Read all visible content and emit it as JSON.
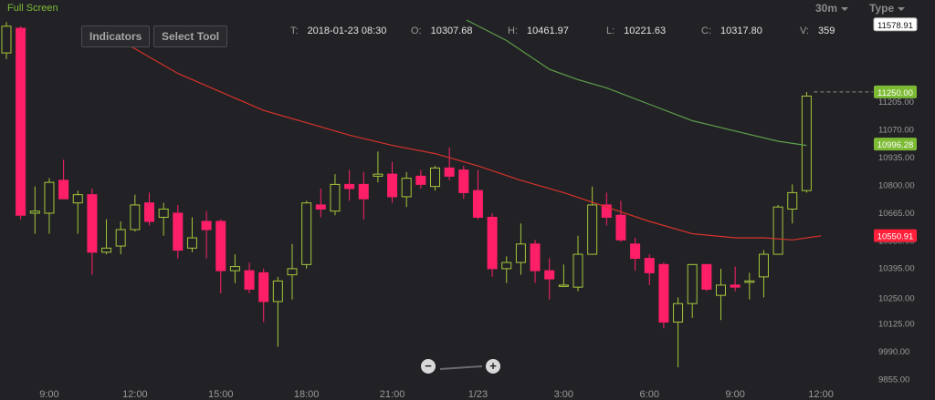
{
  "header": {
    "full_screen": "Full Screen",
    "interval": "30m",
    "type": "Type"
  },
  "toolbar": {
    "indicators": "Indicators",
    "select_tool": "Select Tool",
    "zoom_out": "−",
    "zoom_in": "+"
  },
  "ohlc": {
    "t_label": "T:",
    "t_value": "2018-01-23 08:30",
    "o_label": "O:",
    "o_value": "10307.68",
    "h_label": "H:",
    "h_value": "10461.97",
    "l_label": "L:",
    "l_value": "10221.63",
    "c_label": "C:",
    "c_value": "10317.80",
    "v_label": "V:",
    "v_value": "359"
  },
  "colors": {
    "background": "#222226",
    "up": "#a4c639",
    "down": "#ff1f68",
    "ma_red": "#d6322a",
    "ma_green": "#5e9e4a",
    "price_label_green": "#7dbb35",
    "price_label_red": "#ff1f3b"
  },
  "chart_data": {
    "type": "candlestick",
    "y_ticks": [
      9855,
      9990,
      10125,
      10250,
      10395,
      10530,
      10665,
      10800,
      10935,
      11070,
      11205
    ],
    "y_tick_labels": [
      "9855.00",
      "9990.00",
      "10125.00",
      "10250.00",
      "10395.00",
      "10530.00",
      "10665.00",
      "10800.00",
      "10935.00",
      "11070.00",
      "11205.00"
    ],
    "ylim": [
      9835,
      11600
    ],
    "x_ticks": [
      {
        "index": 3,
        "label": "9:00"
      },
      {
        "index": 9,
        "label": "12:00"
      },
      {
        "index": 15,
        "label": "15:00"
      },
      {
        "index": 21,
        "label": "18:00"
      },
      {
        "index": 27,
        "label": "21:00"
      },
      {
        "index": 33,
        "label": "1/23"
      },
      {
        "index": 39,
        "label": "3:00"
      },
      {
        "index": 45,
        "label": "6:00"
      },
      {
        "index": 51,
        "label": "9:00"
      },
      {
        "index": 57,
        "label": "12:00"
      }
    ],
    "candles": [
      {
        "o": 11440,
        "h": 11590,
        "l": 11410,
        "c": 11570
      },
      {
        "o": 11560,
        "h": 11570,
        "l": 10630,
        "c": 10650
      },
      {
        "o": 10660,
        "h": 10790,
        "l": 10560,
        "c": 10670
      },
      {
        "o": 10660,
        "h": 10830,
        "l": 10560,
        "c": 10810
      },
      {
        "o": 10820,
        "h": 10920,
        "l": 10730,
        "c": 10730
      },
      {
        "o": 10710,
        "h": 10770,
        "l": 10560,
        "c": 10750
      },
      {
        "o": 10750,
        "h": 10780,
        "l": 10360,
        "c": 10470
      },
      {
        "o": 10470,
        "h": 10630,
        "l": 10460,
        "c": 10490
      },
      {
        "o": 10500,
        "h": 10620,
        "l": 10460,
        "c": 10580
      },
      {
        "o": 10580,
        "h": 10750,
        "l": 10570,
        "c": 10700
      },
      {
        "o": 10710,
        "h": 10760,
        "l": 10600,
        "c": 10620
      },
      {
        "o": 10640,
        "h": 10710,
        "l": 10550,
        "c": 10680
      },
      {
        "o": 10660,
        "h": 10700,
        "l": 10440,
        "c": 10480
      },
      {
        "o": 10490,
        "h": 10640,
        "l": 10470,
        "c": 10540
      },
      {
        "o": 10620,
        "h": 10670,
        "l": 10440,
        "c": 10580
      },
      {
        "o": 10620,
        "h": 10630,
        "l": 10270,
        "c": 10380
      },
      {
        "o": 10380,
        "h": 10460,
        "l": 10320,
        "c": 10400
      },
      {
        "o": 10380,
        "h": 10420,
        "l": 10270,
        "c": 10290
      },
      {
        "o": 10370,
        "h": 10390,
        "l": 10130,
        "c": 10230
      },
      {
        "o": 10230,
        "h": 10350,
        "l": 10010,
        "c": 10330
      },
      {
        "o": 10360,
        "h": 10510,
        "l": 10240,
        "c": 10390
      },
      {
        "o": 10410,
        "h": 10720,
        "l": 10390,
        "c": 10710
      },
      {
        "o": 10700,
        "h": 10780,
        "l": 10640,
        "c": 10680
      },
      {
        "o": 10670,
        "h": 10850,
        "l": 10650,
        "c": 10800
      },
      {
        "o": 10800,
        "h": 10870,
        "l": 10720,
        "c": 10780
      },
      {
        "o": 10800,
        "h": 10860,
        "l": 10630,
        "c": 10730
      },
      {
        "o": 10840,
        "h": 10960,
        "l": 10810,
        "c": 10850
      },
      {
        "o": 10850,
        "h": 10910,
        "l": 10710,
        "c": 10740
      },
      {
        "o": 10740,
        "h": 10860,
        "l": 10690,
        "c": 10830
      },
      {
        "o": 10840,
        "h": 10870,
        "l": 10780,
        "c": 10800
      },
      {
        "o": 10790,
        "h": 10890,
        "l": 10770,
        "c": 10880
      },
      {
        "o": 10880,
        "h": 10980,
        "l": 10820,
        "c": 10840
      },
      {
        "o": 10870,
        "h": 10890,
        "l": 10730,
        "c": 10760
      },
      {
        "o": 10770,
        "h": 10870,
        "l": 10630,
        "c": 10640
      },
      {
        "o": 10640,
        "h": 10660,
        "l": 10350,
        "c": 10390
      },
      {
        "o": 10390,
        "h": 10450,
        "l": 10320,
        "c": 10420
      },
      {
        "o": 10420,
        "h": 10610,
        "l": 10360,
        "c": 10510
      },
      {
        "o": 10510,
        "h": 10530,
        "l": 10320,
        "c": 10380
      },
      {
        "o": 10380,
        "h": 10440,
        "l": 10240,
        "c": 10340
      },
      {
        "o": 10310,
        "h": 10410,
        "l": 10300,
        "c": 10310
      },
      {
        "o": 10300,
        "h": 10550,
        "l": 10280,
        "c": 10460
      },
      {
        "o": 10460,
        "h": 10790,
        "l": 10460,
        "c": 10700
      },
      {
        "o": 10700,
        "h": 10760,
        "l": 10600,
        "c": 10640
      },
      {
        "o": 10650,
        "h": 10720,
        "l": 10520,
        "c": 10530
      },
      {
        "o": 10510,
        "h": 10540,
        "l": 10380,
        "c": 10440
      },
      {
        "o": 10440,
        "h": 10460,
        "l": 10310,
        "c": 10370
      },
      {
        "o": 10410,
        "h": 10420,
        "l": 10100,
        "c": 10130
      },
      {
        "o": 10130,
        "h": 10250,
        "l": 9910,
        "c": 10220
      },
      {
        "o": 10220,
        "h": 10410,
        "l": 10150,
        "c": 10410
      },
      {
        "o": 10410,
        "h": 10410,
        "l": 10280,
        "c": 10290
      },
      {
        "o": 10260,
        "h": 10390,
        "l": 10140,
        "c": 10310
      },
      {
        "o": 10310,
        "h": 10400,
        "l": 10280,
        "c": 10300
      },
      {
        "o": 10330,
        "h": 10370,
        "l": 10240,
        "c": 10330
      },
      {
        "o": 10350,
        "h": 10480,
        "l": 10250,
        "c": 10460
      },
      {
        "o": 10460,
        "h": 10700,
        "l": 10460,
        "c": 10690
      },
      {
        "o": 10680,
        "h": 10800,
        "l": 10610,
        "c": 10760
      },
      {
        "o": 10770,
        "h": 11250,
        "l": 10760,
        "c": 11230
      }
    ],
    "ma_red": [
      [
        8,
        11500
      ],
      [
        12,
        11340
      ],
      [
        15,
        11250
      ],
      [
        18,
        11160
      ],
      [
        21,
        11100
      ],
      [
        24,
        11040
      ],
      [
        27,
        10990
      ],
      [
        30,
        10950
      ],
      [
        33,
        10890
      ],
      [
        36,
        10820
      ],
      [
        39,
        10760
      ],
      [
        42,
        10690
      ],
      [
        45,
        10620
      ],
      [
        48,
        10560
      ],
      [
        51,
        10540
      ],
      [
        53,
        10540
      ],
      [
        55,
        10530
      ],
      [
        57,
        10550
      ]
    ],
    "ma_green": [
      [
        32.2,
        11600
      ],
      [
        35,
        11500
      ],
      [
        38,
        11360
      ],
      [
        40,
        11310
      ],
      [
        42,
        11270
      ],
      [
        45,
        11190
      ],
      [
        48,
        11110
      ],
      [
        51,
        11060
      ],
      [
        54,
        11010
      ],
      [
        56,
        10990
      ]
    ],
    "price_labels": [
      {
        "value": 11578.91,
        "text": "11578.91",
        "style": "white"
      },
      {
        "value": 11250.0,
        "text": "11250.00",
        "style": "green"
      },
      {
        "value": 10996.28,
        "text": "10996.28",
        "style": "green"
      },
      {
        "value": 10550.91,
        "text": "10550.91",
        "style": "red"
      }
    ],
    "current_price_line": 11250
  }
}
